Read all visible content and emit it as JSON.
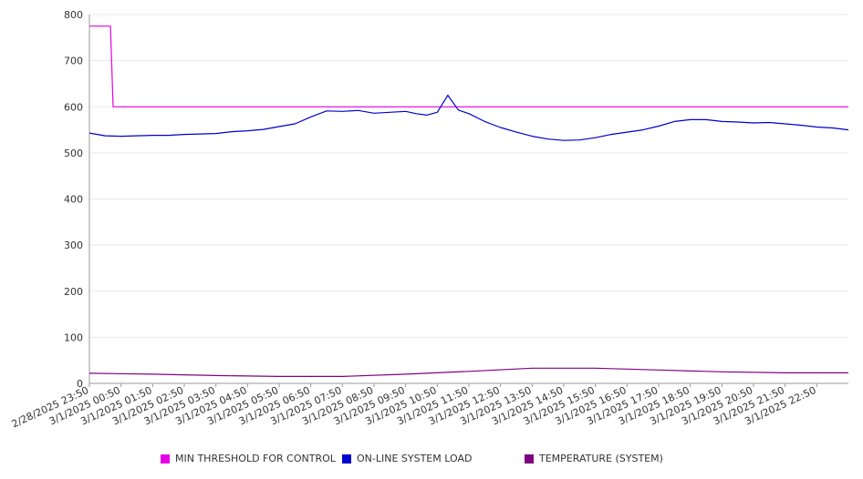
{
  "chart_data": {
    "type": "line",
    "title": "",
    "xlabel": "",
    "ylabel": "",
    "ylim": [
      0,
      800
    ],
    "yticks": [
      0,
      100,
      200,
      300,
      400,
      500,
      600,
      700,
      800
    ],
    "grid": true,
    "legend_position": "bottom",
    "x_tick_labels": [
      "2/28/2025 23:50",
      "3/1/2025 00:50",
      "3/1/2025 01:50",
      "3/1/2025 02:50",
      "3/1/2025 03:50",
      "3/1/2025 04:50",
      "3/1/2025 05:50",
      "3/1/2025 06:50",
      "3/1/2025 07:50",
      "3/1/2025 08:50",
      "3/1/2025 09:50",
      "3/1/2025 10:50",
      "3/1/2025 11:50",
      "3/1/2025 12:50",
      "3/1/2025 13:50",
      "3/1/2025 14:50",
      "3/1/2025 15:50",
      "3/1/2025 16:50",
      "3/1/2025 17:50",
      "3/1/2025 18:50",
      "3/1/2025 19:50",
      "3/1/2025 20:50",
      "3/1/2025 21:50",
      "3/1/2025 22:50"
    ],
    "x_range": [
      "2/28/2025 23:50",
      "3/1/2025 23:50"
    ],
    "series": [
      {
        "name": "MIN THRESHOLD FOR CONTROL",
        "color": "#e600e6",
        "x": [
          "2/28/2025 23:50",
          "3/1/2025 00:30",
          "3/1/2025 00:35",
          "3/1/2025 23:50"
        ],
        "values": [
          775,
          775,
          600,
          600
        ]
      },
      {
        "name": "ON-LINE SYSTEM LOAD",
        "color": "#0000cc",
        "x": [
          "2/28/2025 23:50",
          "3/1/2025 00:20",
          "3/1/2025 00:50",
          "3/1/2025 01:20",
          "3/1/2025 01:50",
          "3/1/2025 02:20",
          "3/1/2025 02:50",
          "3/1/2025 03:20",
          "3/1/2025 03:50",
          "3/1/2025 04:20",
          "3/1/2025 04:50",
          "3/1/2025 05:20",
          "3/1/2025 05:50",
          "3/1/2025 06:20",
          "3/1/2025 06:50",
          "3/1/2025 07:20",
          "3/1/2025 07:50",
          "3/1/2025 08:20",
          "3/1/2025 08:50",
          "3/1/2025 09:20",
          "3/1/2025 09:50",
          "3/1/2025 10:10",
          "3/1/2025 10:30",
          "3/1/2025 10:50",
          "3/1/2025 11:10",
          "3/1/2025 11:30",
          "3/1/2025 11:50",
          "3/1/2025 12:20",
          "3/1/2025 12:50",
          "3/1/2025 13:20",
          "3/1/2025 13:50",
          "3/1/2025 14:20",
          "3/1/2025 14:50",
          "3/1/2025 15:20",
          "3/1/2025 15:50",
          "3/1/2025 16:20",
          "3/1/2025 16:50",
          "3/1/2025 17:20",
          "3/1/2025 17:50",
          "3/1/2025 18:20",
          "3/1/2025 18:50",
          "3/1/2025 19:20",
          "3/1/2025 19:50",
          "3/1/2025 20:20",
          "3/1/2025 20:50",
          "3/1/2025 21:20",
          "3/1/2025 21:50",
          "3/1/2025 22:20",
          "3/1/2025 22:50",
          "3/1/2025 23:20",
          "3/1/2025 23:50"
        ],
        "values": [
          543,
          537,
          536,
          537,
          538,
          538,
          540,
          541,
          542,
          546,
          548,
          551,
          557,
          563,
          578,
          591,
          590,
          592,
          586,
          588,
          590,
          585,
          582,
          588,
          625,
          593,
          585,
          568,
          555,
          545,
          536,
          530,
          527,
          528,
          533,
          540,
          545,
          550,
          558,
          568,
          572,
          572,
          568,
          567,
          565,
          566,
          563,
          560,
          556,
          554,
          550
        ]
      },
      {
        "name": "TEMPERATURE (SYSTEM)",
        "color": "#800080",
        "x": [
          "2/28/2025 23:50",
          "3/1/2025 01:50",
          "3/1/2025 03:50",
          "3/1/2025 05:50",
          "3/1/2025 07:50",
          "3/1/2025 09:50",
          "3/1/2025 11:50",
          "3/1/2025 13:50",
          "3/1/2025 15:50",
          "3/1/2025 17:50",
          "3/1/2025 19:50",
          "3/1/2025 21:50",
          "3/1/2025 23:50"
        ],
        "values": [
          22,
          20,
          17,
          15,
          15,
          20,
          26,
          33,
          33,
          29,
          25,
          23,
          23
        ]
      }
    ]
  }
}
